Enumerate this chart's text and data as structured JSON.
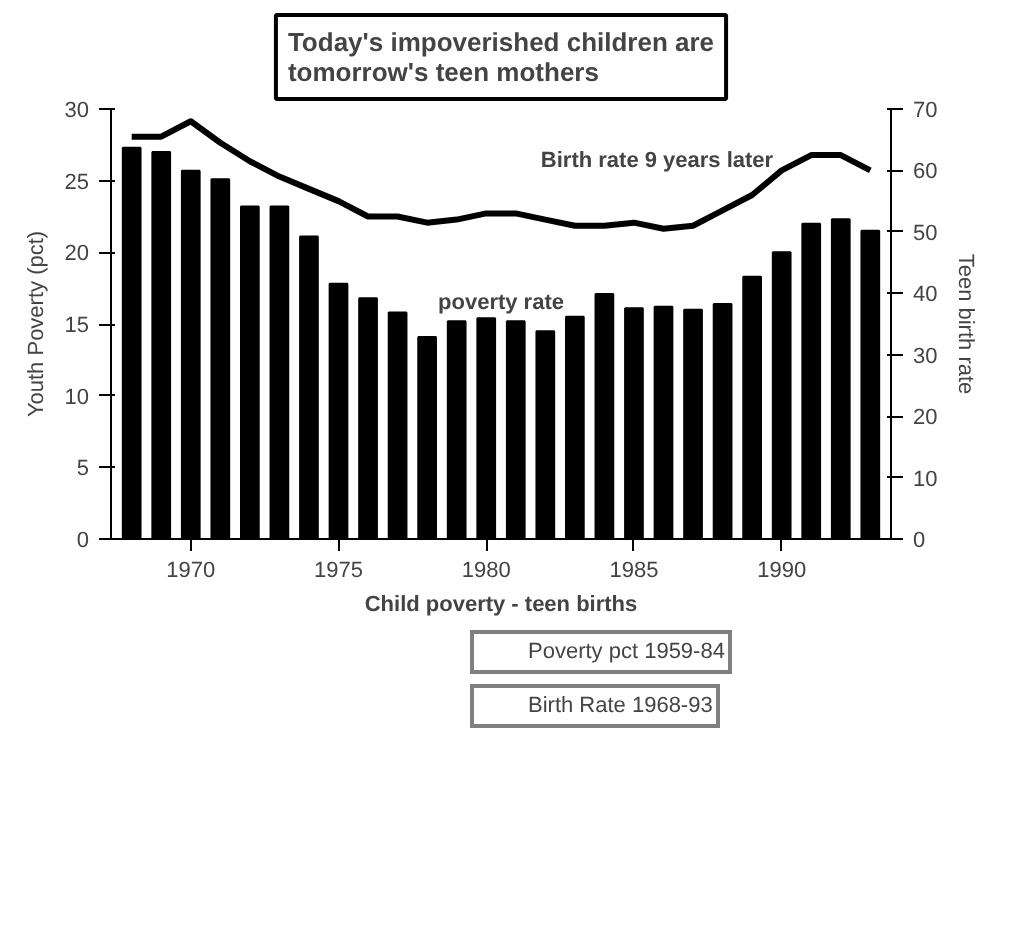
{
  "chart_data": {
    "type": "bar",
    "title": "Today's impoverished children are\ntomorrow's teen mothers",
    "xlabel": "Child poverty - teen births",
    "ylabel": "Youth Poverty (pct)",
    "y2label": "Teen birth rate",
    "x": [
      1968,
      1969,
      1970,
      1971,
      1972,
      1973,
      1974,
      1975,
      1976,
      1977,
      1978,
      1979,
      1980,
      1981,
      1982,
      1983,
      1984,
      1985,
      1986,
      1987,
      1988,
      1989,
      1990,
      1991,
      1992,
      1993
    ],
    "series": [
      {
        "name": "Poverty pct 1959-84",
        "color": "#000000",
        "values": [
          27.3,
          27.0,
          25.7,
          25.1,
          23.2,
          23.2,
          21.1,
          17.8,
          16.8,
          15.8,
          14.1,
          15.2,
          15.4,
          15.2,
          14.5,
          15.5,
          17.1,
          16.1,
          16.2,
          16.0,
          16.4,
          18.3,
          20.0,
          22.0,
          22.3,
          21.5
        ]
      },
      {
        "name": "Birth Rate 1968-93",
        "type": "line",
        "axis": "y2",
        "color": "#000000",
        "values": [
          65.5,
          65.5,
          68,
          64.5,
          61.5,
          59,
          57,
          55,
          52.5,
          52.5,
          51.5,
          52,
          53,
          53,
          52,
          51,
          51,
          51.5,
          50.5,
          51,
          53.5,
          56,
          60,
          62.5,
          62.5,
          60
        ]
      }
    ],
    "xlim": [
      1967.3,
      1993.7
    ],
    "xticks": [
      1970,
      1975,
      1980,
      1985,
      1990
    ],
    "ylim": [
      0,
      30
    ],
    "yticks": [
      0,
      5,
      10,
      15,
      20,
      25,
      30
    ],
    "y2lim": [
      0,
      70
    ],
    "y2ticks": [
      0,
      10,
      20,
      30,
      40,
      50,
      60,
      70
    ],
    "annotations": [
      "Birth rate 9 years later",
      "poverty rate"
    ],
    "grid": false,
    "legend": "bottom",
    "marker": "none",
    "line_style": "solid"
  }
}
